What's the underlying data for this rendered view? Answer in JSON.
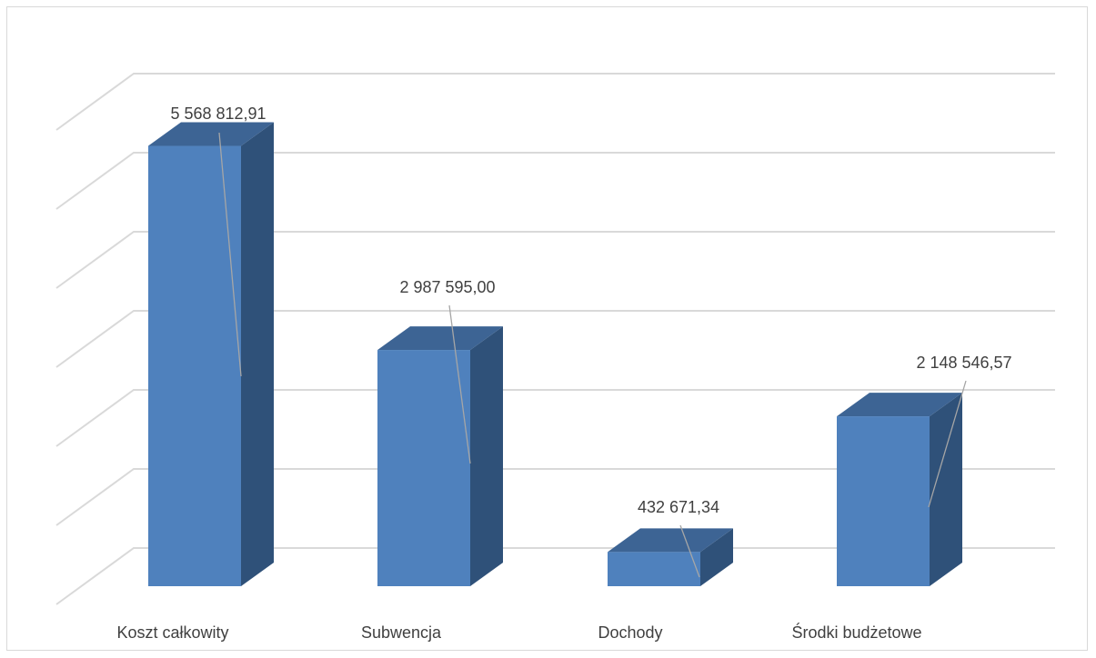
{
  "chart_data": {
    "type": "bar",
    "style": "3d-column",
    "categories": [
      "Koszt całkowity",
      "Subwencja",
      "Dochody",
      "Środki budżetowe"
    ],
    "values": [
      5568812.91,
      2987595.0,
      432671.34,
      2148546.57
    ],
    "value_labels": [
      "5 568 812,91",
      "2 987 595,00",
      "432 671,34",
      "2 148 546,57"
    ],
    "ylim": [
      0,
      6000000
    ],
    "grid": true,
    "legend": "none",
    "title": "",
    "xlabel": "",
    "ylabel": ""
  },
  "colors": {
    "bar_front": "#4f81bd",
    "bar_top": "#3d6494",
    "bar_side": "#2f5179",
    "gridline": "#d9d9d9",
    "leader_line": "#a6a6a6",
    "text": "#404040"
  }
}
